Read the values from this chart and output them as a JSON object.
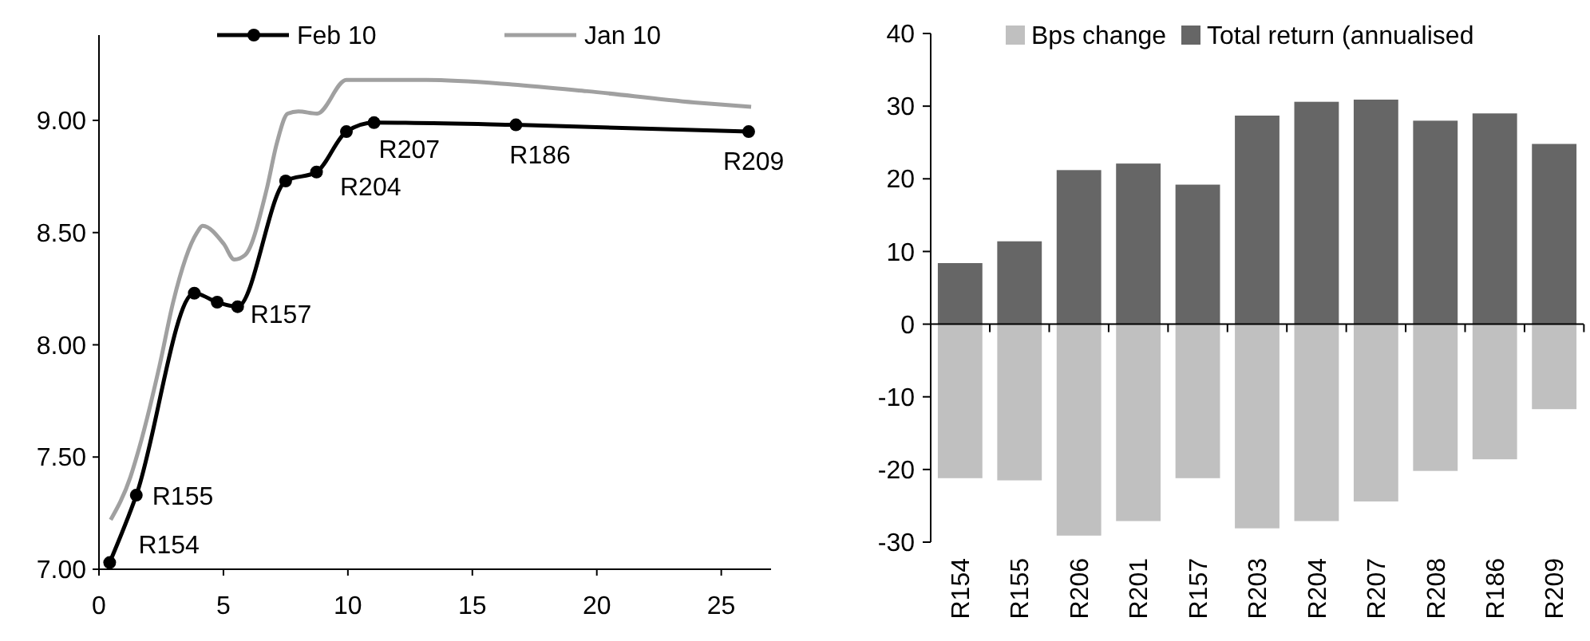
{
  "chart_data": [
    {
      "type": "line",
      "xlim": [
        0,
        27
      ],
      "xticks": [
        0,
        5,
        10,
        15,
        20,
        25
      ],
      "ylim": [
        7,
        9.38
      ],
      "yticks": [
        {
          "value": 7,
          "label": "7.00"
        },
        {
          "value": 7.5,
          "label": "7.50"
        },
        {
          "value": 8,
          "label": "8.00"
        },
        {
          "value": 8.5,
          "label": "8.50"
        },
        {
          "value": 9,
          "label": "9.00"
        }
      ],
      "grid": false,
      "legend": "top",
      "series": [
        {
          "name": "Feb 10",
          "color": "#000000",
          "marker": "circle",
          "x": [
            0.43,
            1.5,
            3.83,
            4.75,
            5.57,
            7.5,
            8.74,
            9.94,
            11.05,
            16.75,
            26.1
          ],
          "values": [
            7.03,
            7.33,
            8.23,
            8.19,
            8.17,
            8.73,
            8.77,
            8.95,
            8.99,
            8.98,
            8.95
          ]
        },
        {
          "name": "Jan 10",
          "color": "#a0a0a0",
          "marker": "none",
          "x": [
            0.47,
            1.26,
            1.59,
            2.44,
            2.98,
            3.94,
            4.16,
            5.01,
            5.44,
            5.87,
            6.73,
            7.15,
            7.58,
            8.01,
            8.76,
            9.94,
            13.16,
            16.6,
            19.6,
            23.9,
            26.2
          ],
          "values": [
            7.22,
            7.41,
            7.53,
            7.91,
            8.19,
            8.5,
            8.53,
            8.45,
            8.38,
            8.4,
            8.69,
            8.9,
            9.03,
            9.04,
            9.03,
            9.18,
            9.18,
            9.16,
            9.13,
            9.08,
            9.06
          ]
        }
      ],
      "annotations": [
        {
          "text": "R154",
          "x": 0.43,
          "y": 7.03
        },
        {
          "text": "R155",
          "x": 1.5,
          "y": 7.33
        },
        {
          "text": "R157",
          "x": 5.57,
          "y": 8.17
        },
        {
          "text": "R204",
          "x": 9.94,
          "y": 8.95
        },
        {
          "text": "R207",
          "x": 11.05,
          "y": 8.99
        },
        {
          "text": "R186",
          "x": 16.75,
          "y": 8.98
        },
        {
          "text": "R209",
          "x": 26.1,
          "y": 8.95
        }
      ]
    },
    {
      "type": "bar",
      "stacked": true,
      "categories": [
        "R154",
        "R155",
        "R206",
        "R201",
        "R157",
        "R203",
        "R204",
        "R207",
        "R208",
        "R186",
        "R209"
      ],
      "ylim": [
        -30,
        40
      ],
      "yticks": [
        -30,
        -20,
        -10,
        0,
        10,
        20,
        30,
        40
      ],
      "legend": "top",
      "series": [
        {
          "name": "Bps change",
          "color": "#c0c0c0",
          "values": [
            -21.2,
            -21.5,
            -29.1,
            -27.1,
            -21.2,
            -28.1,
            -27.1,
            -24.4,
            -20.2,
            -18.6,
            -11.7
          ]
        },
        {
          "name": "Total return (annualised",
          "color": "#666666",
          "values": [
            8.4,
            11.4,
            21.2,
            22.1,
            19.2,
            28.7,
            30.6,
            30.9,
            28.0,
            29.0,
            24.8
          ]
        }
      ]
    }
  ]
}
